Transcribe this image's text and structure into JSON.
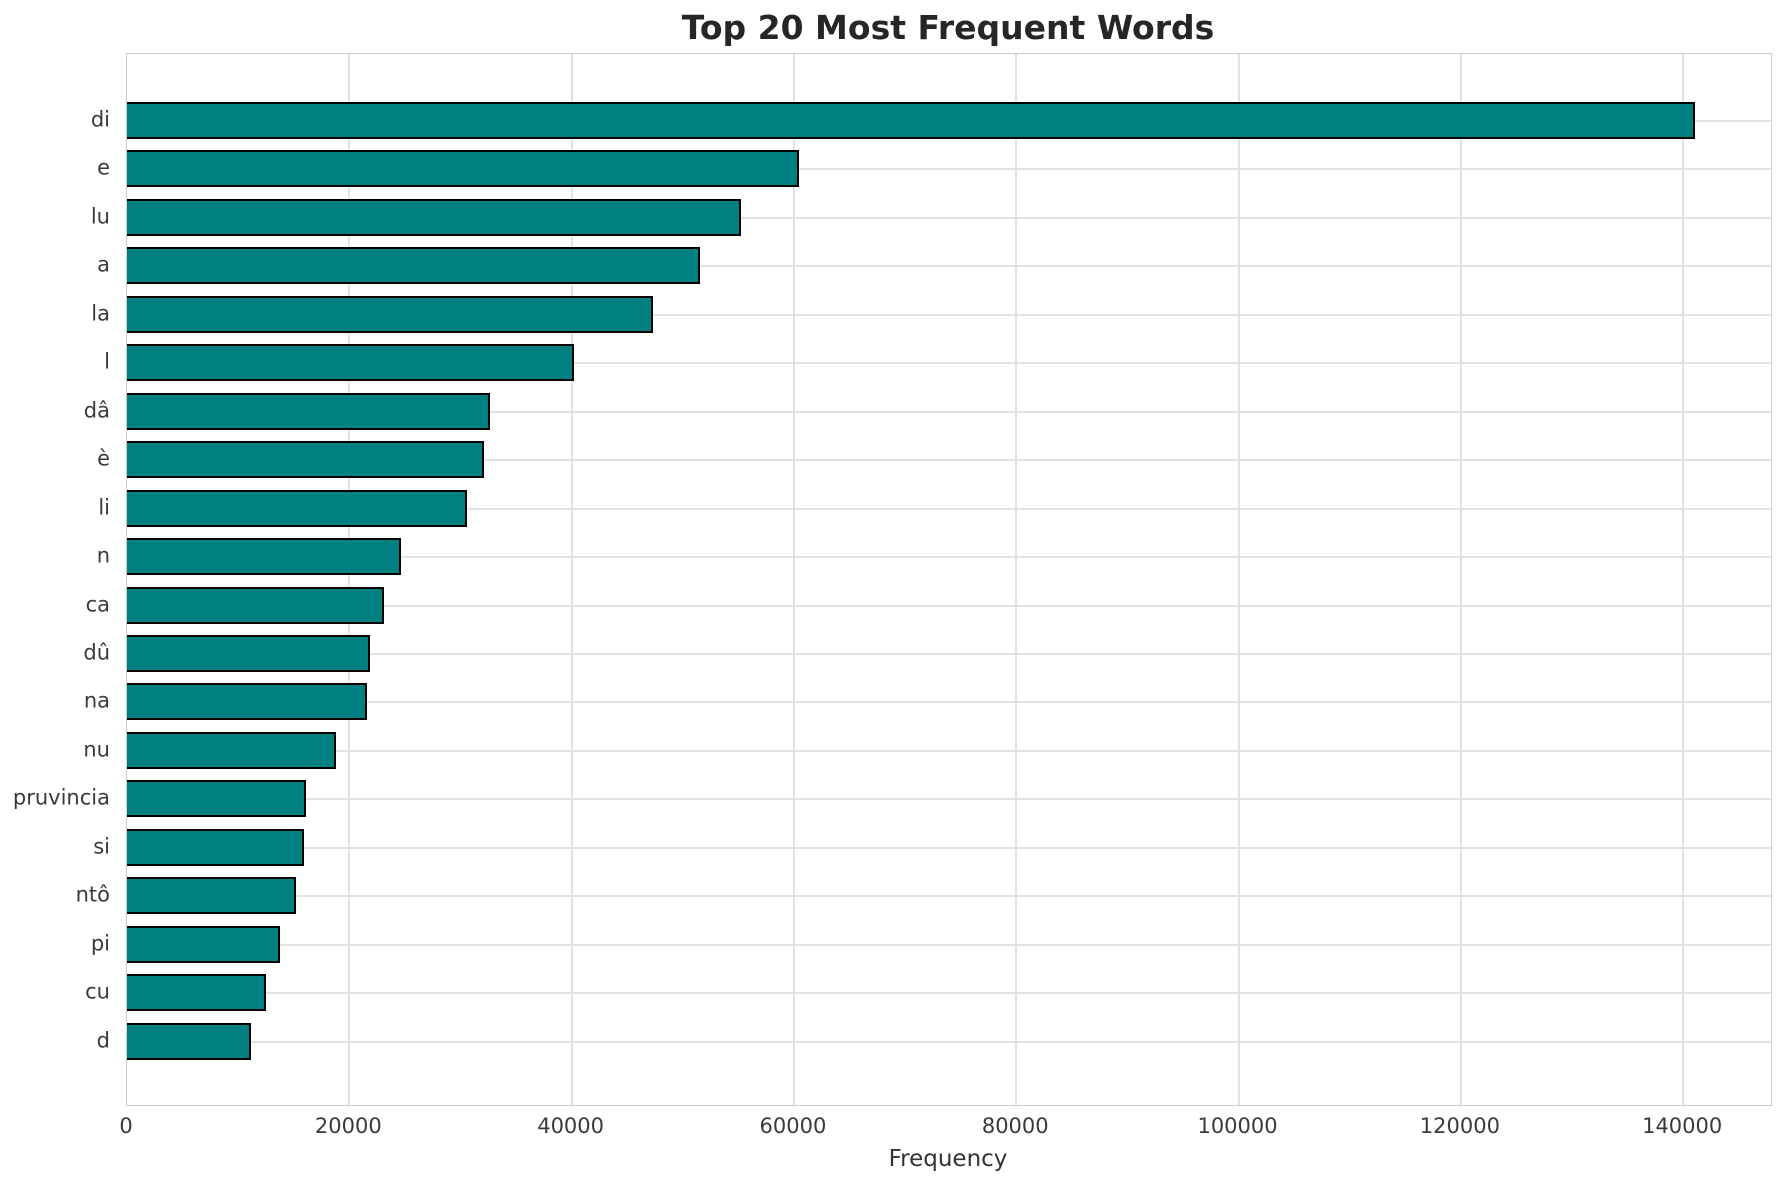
{
  "title": "Top 20 Most Frequent Words",
  "xlabel": "Frequency",
  "colors": {
    "bar_fill": "#008080",
    "bar_edge": "#000000",
    "grid": "#e2e2e2",
    "frame": "#cccccc",
    "tick_text": "#3a3a3a",
    "title_text": "#262626",
    "background": "#ffffff"
  },
  "chart_data": {
    "type": "bar",
    "orientation": "horizontal",
    "title": "Top 20 Most Frequent Words",
    "xlabel": "Frequency",
    "ylabel": "",
    "categories": [
      "di",
      "e",
      "lu",
      "a",
      "la",
      "l",
      "dâ",
      "è",
      "li",
      "n",
      "ca",
      "dû",
      "na",
      "nu",
      "pruvincia",
      "si",
      "ntô",
      "pi",
      "cu",
      "d"
    ],
    "values": [
      140900,
      60300,
      55100,
      51400,
      47100,
      40000,
      32500,
      31900,
      30400,
      24500,
      22900,
      21700,
      21400,
      18600,
      15900,
      15700,
      15000,
      13600,
      12300,
      11000
    ],
    "xticks": [
      0,
      20000,
      40000,
      60000,
      80000,
      100000,
      120000,
      140000
    ],
    "xlim": [
      0,
      147900
    ],
    "grid": true,
    "legend_position": "none"
  }
}
